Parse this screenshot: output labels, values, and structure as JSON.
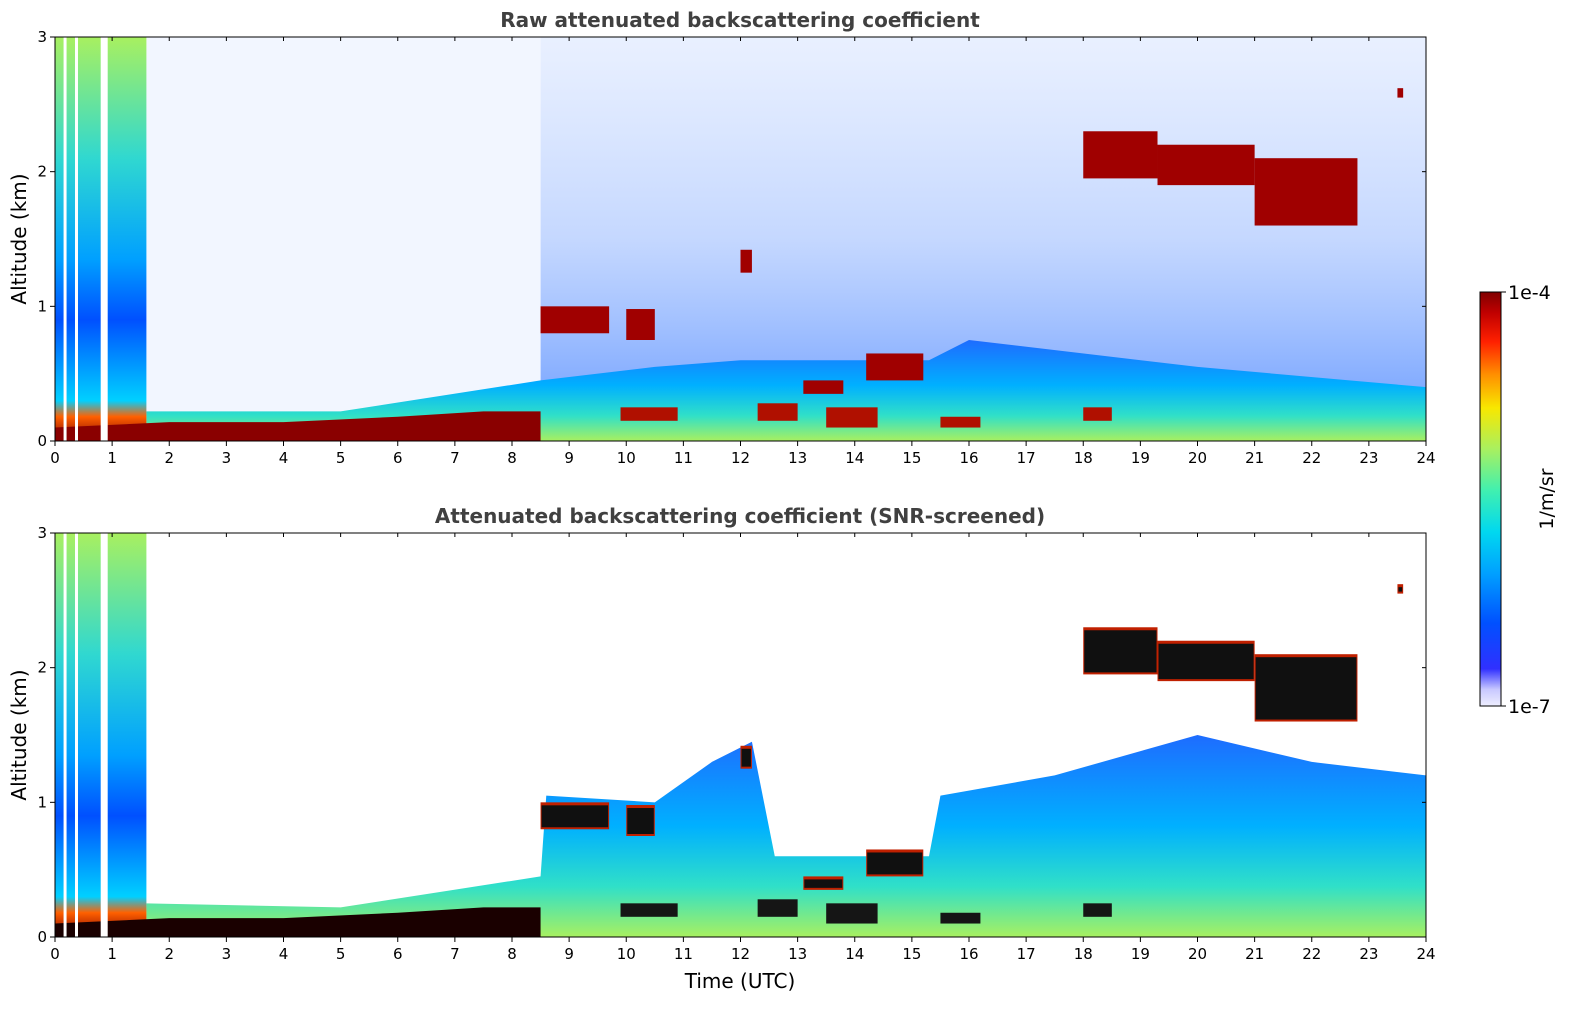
{
  "chart_data": [
    {
      "type": "heatmap",
      "title": "Raw attenuated backscattering coefficient",
      "xlabel": "",
      "ylabel": "Altitude (km)",
      "xlim": [
        0,
        24
      ],
      "ylim": [
        0,
        3
      ],
      "xticks": [
        "0",
        "1",
        "2",
        "3",
        "4",
        "5",
        "6",
        "7",
        "8",
        "9",
        "10",
        "11",
        "12",
        "13",
        "14",
        "15",
        "16",
        "17",
        "18",
        "19",
        "20",
        "21",
        "22",
        "23",
        "24"
      ],
      "yticks": [
        "0",
        "1",
        "2",
        "3"
      ],
      "surface_layer": [
        {
          "x": 0.0,
          "top": 0.1
        },
        {
          "x": 2.0,
          "top": 0.14
        },
        {
          "x": 4.0,
          "top": 0.14
        },
        {
          "x": 6.0,
          "top": 0.18
        },
        {
          "x": 7.5,
          "top": 0.22
        },
        {
          "x": 8.5,
          "top": 0.22
        }
      ],
      "boundary_layer_top": [
        {
          "x": 1.6,
          "top": 0.22
        },
        {
          "x": 5.0,
          "top": 0.22
        },
        {
          "x": 8.5,
          "top": 0.45
        },
        {
          "x": 10.5,
          "top": 0.55
        },
        {
          "x": 12.0,
          "top": 0.6
        },
        {
          "x": 15.3,
          "top": 0.6
        },
        {
          "x": 16.0,
          "top": 0.75
        },
        {
          "x": 20.0,
          "top": 0.55
        },
        {
          "x": 24.0,
          "top": 0.4
        }
      ],
      "cloud_features": [
        {
          "x0": 8.5,
          "x1": 9.7,
          "base": 0.8,
          "top": 1.0
        },
        {
          "x0": 10.0,
          "x1": 10.5,
          "base": 0.75,
          "top": 0.98
        },
        {
          "x0": 12.0,
          "x1": 12.2,
          "base": 1.25,
          "top": 1.42
        },
        {
          "x0": 13.1,
          "x1": 13.8,
          "base": 0.35,
          "top": 0.45
        },
        {
          "x0": 14.2,
          "x1": 15.2,
          "base": 0.45,
          "top": 0.65
        },
        {
          "x0": 18.0,
          "x1": 19.3,
          "base": 1.95,
          "top": 2.3
        },
        {
          "x0": 19.3,
          "x1": 21.0,
          "base": 1.9,
          "top": 2.2
        },
        {
          "x0": 21.0,
          "x1": 22.8,
          "base": 1.6,
          "top": 2.1
        },
        {
          "x0": 23.5,
          "x1": 23.6,
          "base": 2.55,
          "top": 2.62
        }
      ],
      "low_cloud_fragments": [
        {
          "x0": 9.9,
          "x1": 10.9,
          "base": 0.15,
          "top": 0.25
        },
        {
          "x0": 12.3,
          "x1": 13.0,
          "base": 0.15,
          "top": 0.28
        },
        {
          "x0": 13.5,
          "x1": 14.4,
          "base": 0.1,
          "top": 0.25
        },
        {
          "x0": 15.5,
          "x1": 16.2,
          "base": 0.1,
          "top": 0.18
        },
        {
          "x0": 18.0,
          "x1": 18.5,
          "base": 0.15,
          "top": 0.25
        }
      ]
    },
    {
      "type": "heatmap",
      "title": "Attenuated backscattering coefficient (SNR-screened)",
      "xlabel": "Time (UTC)",
      "ylabel": "Altitude (km)",
      "xlim": [
        0,
        24
      ],
      "ylim": [
        0,
        3
      ],
      "xticks": [
        "0",
        "1",
        "2",
        "3",
        "4",
        "5",
        "6",
        "7",
        "8",
        "9",
        "10",
        "11",
        "12",
        "13",
        "14",
        "15",
        "16",
        "17",
        "18",
        "19",
        "20",
        "21",
        "22",
        "23",
        "24"
      ],
      "yticks": [
        "0",
        "1",
        "2",
        "3"
      ],
      "screened_top": [
        {
          "x": 1.6,
          "top": 0.25
        },
        {
          "x": 5.0,
          "top": 0.22
        },
        {
          "x": 8.5,
          "top": 0.45
        },
        {
          "x": 8.6,
          "top": 1.05
        },
        {
          "x": 10.5,
          "top": 1.0
        },
        {
          "x": 11.5,
          "top": 1.3
        },
        {
          "x": 12.2,
          "top": 1.45
        },
        {
          "x": 12.6,
          "top": 0.6
        },
        {
          "x": 15.3,
          "top": 0.6
        },
        {
          "x": 15.5,
          "top": 1.05
        },
        {
          "x": 17.5,
          "top": 1.2
        },
        {
          "x": 20.0,
          "top": 1.5
        },
        {
          "x": 22.0,
          "top": 1.3
        },
        {
          "x": 24.0,
          "top": 1.2
        }
      ]
    }
  ],
  "colorbar": {
    "min_label": "1e-7",
    "max_label": "1e-4",
    "label": "1/m/sr",
    "colors": [
      "#eeeefe",
      "#c8c8ff",
      "#3030ff",
      "#0050ff",
      "#00a0ff",
      "#00d8f0",
      "#40f0b0",
      "#a8f060",
      "#f8e800",
      "#ff9000",
      "#ff2000",
      "#c00000",
      "#800000"
    ]
  }
}
